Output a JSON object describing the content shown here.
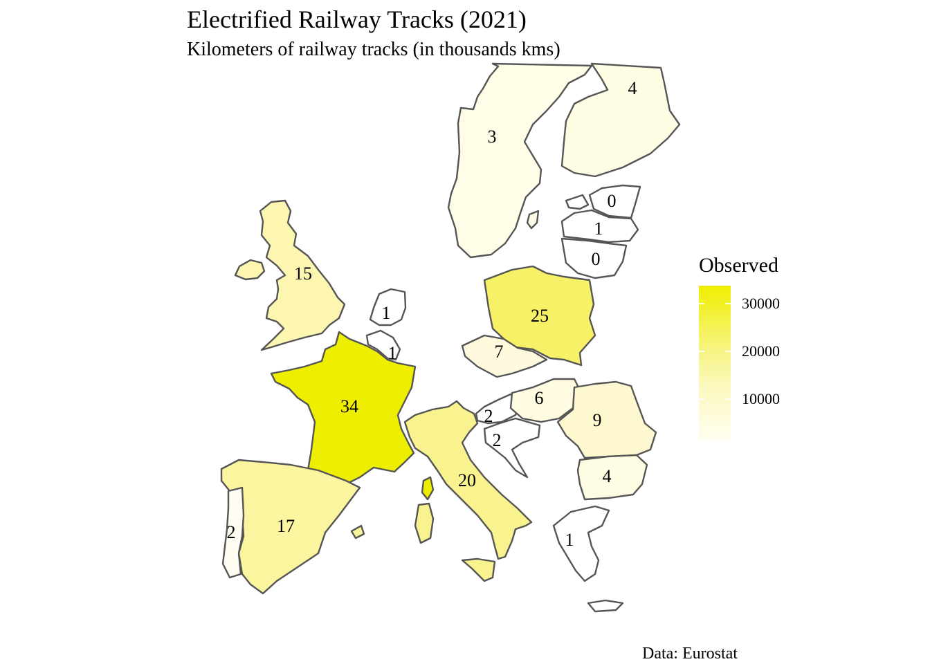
{
  "title": "Electrified Railway Tracks (2021)",
  "subtitle": "Kilometers of railway tracks (in thousands kms)",
  "caption": "Data: Eurostat",
  "legend": {
    "title": "Observed",
    "ticks": [
      "30000",
      "20000",
      "10000"
    ],
    "colors": {
      "high": "#eeee00",
      "low": "#fffef0"
    }
  },
  "map_data": {
    "countries": [
      {
        "name": "Sweden",
        "label": "3",
        "fill": "#fffde8"
      },
      {
        "name": "Finland",
        "label": "4",
        "fill": "#fffce4"
      },
      {
        "name": "Estonia",
        "label": "0",
        "fill": "#ffffff"
      },
      {
        "name": "Latvia",
        "label": "1",
        "fill": "#ffffff"
      },
      {
        "name": "Lithuania",
        "label": "0",
        "fill": "#ffffff"
      },
      {
        "name": "United Kingdom",
        "label": "15",
        "fill": "#fcf6b0"
      },
      {
        "name": "Netherlands",
        "label": "1",
        "fill": "#ffffff"
      },
      {
        "name": "Belgium",
        "label": "1",
        "fill": "#ffffff"
      },
      {
        "name": "France",
        "label": "34",
        "fill": "#eeee00"
      },
      {
        "name": "Poland",
        "label": "25",
        "fill": "#f6f166"
      },
      {
        "name": "Czechia",
        "label": "7",
        "fill": "#fffadd"
      },
      {
        "name": "Austria",
        "label": "2",
        "fill": "#ffffff"
      },
      {
        "name": "Slovenia",
        "label": "2",
        "fill": "#ffffff"
      },
      {
        "name": "Hungary",
        "label": "6",
        "fill": "#fffbe0"
      },
      {
        "name": "Romania",
        "label": "9",
        "fill": "#fef8d0"
      },
      {
        "name": "Bulgaria",
        "label": "4",
        "fill": "#fffce4"
      },
      {
        "name": "Greece",
        "label": "1",
        "fill": "#ffffff"
      },
      {
        "name": "Italy",
        "label": "20",
        "fill": "#f8f38f"
      },
      {
        "name": "Spain",
        "label": "17",
        "fill": "#fbf59f"
      },
      {
        "name": "Portugal",
        "label": "2",
        "fill": "#fffdf2"
      }
    ]
  }
}
